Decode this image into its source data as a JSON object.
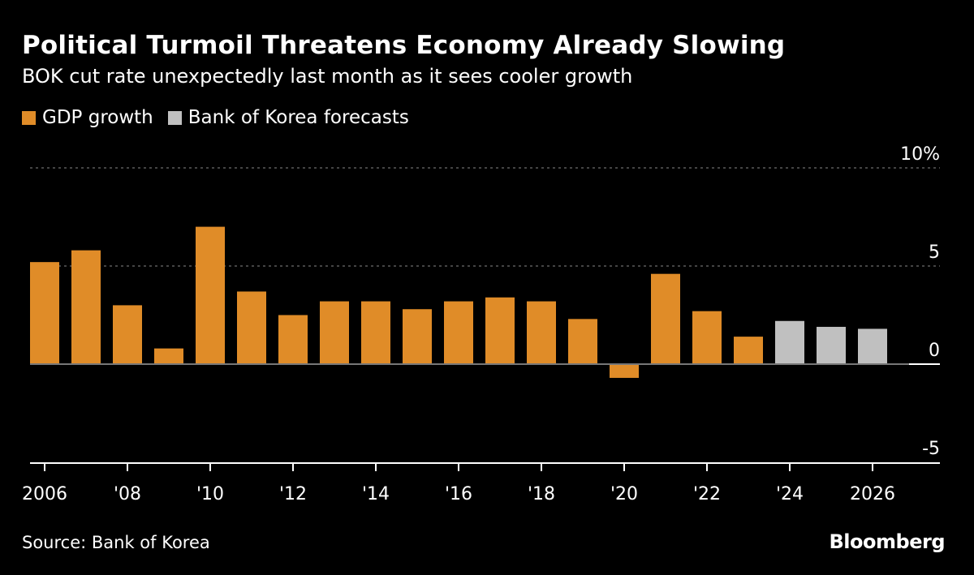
{
  "title": "Political Turmoil Threatens Economy Already Slowing",
  "subtitle": "BOK cut rate unexpectedly last month as it sees cooler growth",
  "source": "Source: Bank of Korea",
  "brand": "Bloomberg",
  "colors": {
    "gdp": "#e08c28",
    "forecast": "#c0c0c0",
    "background": "#000000"
  },
  "chart_data": {
    "type": "bar",
    "legend_placement": "top-left",
    "legend": [
      "GDP growth",
      "Bank of Korea forecasts"
    ],
    "x": [
      2006,
      2007,
      2008,
      2009,
      2010,
      2011,
      2012,
      2013,
      2014,
      2015,
      2016,
      2017,
      2018,
      2019,
      2020,
      2021,
      2022,
      2023,
      2024,
      2025,
      2026
    ],
    "series": [
      {
        "name": "GDP growth",
        "values": [
          5.2,
          5.8,
          3.0,
          0.8,
          7.0,
          3.7,
          2.5,
          3.2,
          3.2,
          2.8,
          3.2,
          3.4,
          3.2,
          2.3,
          -0.7,
          4.6,
          2.7,
          1.4,
          null,
          null,
          null
        ]
      },
      {
        "name": "Bank of Korea forecasts",
        "values": [
          null,
          null,
          null,
          null,
          null,
          null,
          null,
          null,
          null,
          null,
          null,
          null,
          null,
          null,
          null,
          null,
          null,
          null,
          2.2,
          1.9,
          1.8
        ]
      }
    ],
    "ylim": [
      -5,
      10
    ],
    "y_ticks": [
      {
        "value": 10,
        "label": "10%"
      },
      {
        "value": 5,
        "label": "5"
      },
      {
        "value": 0,
        "label": "0"
      },
      {
        "value": -5,
        "label": "-5"
      }
    ],
    "x_ticks": [
      {
        "year": 2006,
        "label": "2006"
      },
      {
        "year": 2008,
        "label": "'08"
      },
      {
        "year": 2010,
        "label": "'10"
      },
      {
        "year": 2012,
        "label": "'12"
      },
      {
        "year": 2014,
        "label": "'14"
      },
      {
        "year": 2016,
        "label": "'16"
      },
      {
        "year": 2018,
        "label": "'18"
      },
      {
        "year": 2020,
        "label": "'20"
      },
      {
        "year": 2022,
        "label": "'22"
      },
      {
        "year": 2024,
        "label": "'24"
      },
      {
        "year": 2026,
        "label": "2026"
      }
    ],
    "grid": true
  }
}
